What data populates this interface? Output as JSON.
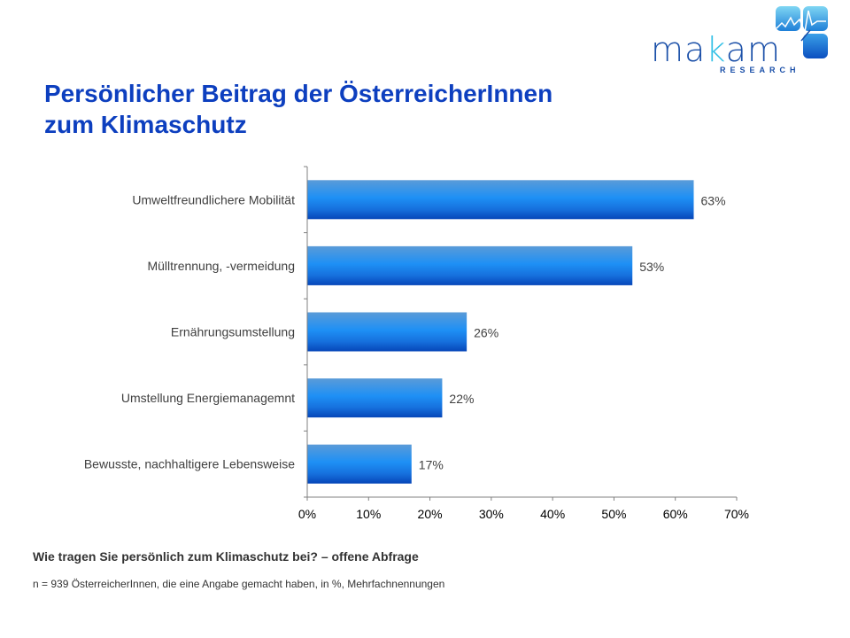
{
  "logo": {
    "text_pre": "ma",
    "text_k": "k",
    "text_post": "am",
    "subtitle": "RESEARCH"
  },
  "title": {
    "line1": "Persönlicher Beitrag der ÖsterreicherInnen",
    "line2": "zum Klimaschutz"
  },
  "footer": {
    "question": "Wie tragen Sie persönlich zum Klimaschutz bei? – offene Abfrage",
    "note": "n = 939 ÖsterreicherInnen, die eine Angabe gemacht haben, in %, Mehrfachnennungen"
  },
  "colors": {
    "title": "#0d3fbf",
    "bar_top": "#5aa0dc",
    "bar_mid": "#1e90f5",
    "bar_bottom": "#0a4fc0"
  },
  "chart_data": {
    "type": "bar",
    "orientation": "horizontal",
    "title": "Persönlicher Beitrag der ÖsterreicherInnen zum Klimaschutz",
    "categories": [
      "Umweltfreundlichere Mobilität",
      "Mülltrennung, -vermeidung",
      "Ernährungsumstellung",
      "Umstellung Energiemanagemnt",
      "Bewusste, nachhaltigere Lebensweise"
    ],
    "values": [
      63,
      53,
      26,
      22,
      17
    ],
    "value_labels": [
      "63%",
      "53%",
      "26%",
      "22%",
      "17%"
    ],
    "xlabel": "",
    "ylabel": "",
    "xlim": [
      0,
      70
    ],
    "xticks": [
      0,
      10,
      20,
      30,
      40,
      50,
      60,
      70
    ],
    "xtick_labels": [
      "0%",
      "10%",
      "20%",
      "30%",
      "40%",
      "50%",
      "60%",
      "70%"
    ],
    "grid": false,
    "legend": "none"
  }
}
